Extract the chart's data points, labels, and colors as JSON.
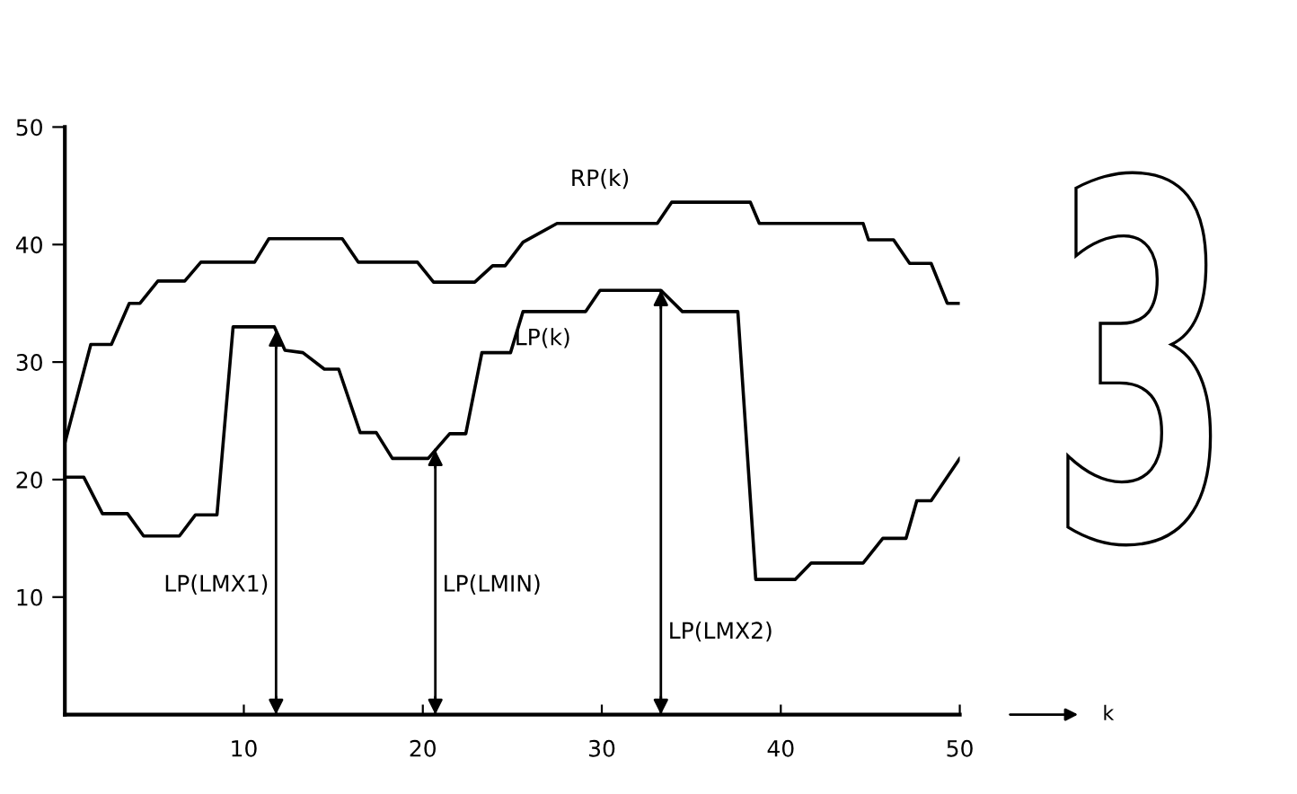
{
  "chart_data": {
    "type": "line",
    "xlim": [
      0,
      50
    ],
    "ylim": [
      0,
      50
    ],
    "xticks": [
      10,
      20,
      30,
      40,
      50
    ],
    "yticks": [
      10,
      20,
      30,
      40,
      50
    ],
    "grid": false,
    "legend": false,
    "marker": "none",
    "line_style": "solid",
    "series": [
      {
        "name": "RP(k)",
        "color": "#000000",
        "x": [
          0,
          1.45,
          2.6,
          3.6,
          4.2,
          5.2,
          6.7,
          7.6,
          10.6,
          11.4,
          15.5,
          16.4,
          19.7,
          20.6,
          22.9,
          23.9,
          24.6,
          25.6,
          27.5,
          33.1,
          33.9,
          38.3,
          38.8,
          44.6,
          44.9,
          46.3,
          47.2,
          48.4,
          49.3,
          50
        ],
        "values": [
          23.1,
          31.5,
          31.5,
          35,
          35,
          36.9,
          36.9,
          38.5,
          38.5,
          40.5,
          40.5,
          38.5,
          38.5,
          36.8,
          36.8,
          38.2,
          38.2,
          40.2,
          41.8,
          41.8,
          43.6,
          43.6,
          41.8,
          41.8,
          40.4,
          40.4,
          38.4,
          38.4,
          35,
          35
        ]
      },
      {
        "name": "LP(k)",
        "color": "#000000",
        "x": [
          0,
          1.06,
          2.1,
          3.5,
          4.4,
          6.4,
          7.3,
          8.5,
          9.4,
          11.7,
          12.3,
          13.3,
          14.5,
          15.3,
          16.5,
          17.4,
          18.3,
          20.3,
          21.5,
          22.4,
          23.3,
          24.9,
          25.6,
          29.1,
          29.9,
          33.3,
          34.5,
          37.6,
          38.6,
          40.8,
          41.7,
          44.6,
          45.7,
          47,
          47.6,
          48.4,
          50
        ],
        "values": [
          20.2,
          20.2,
          17.1,
          17.1,
          15.2,
          15.2,
          17,
          17,
          33,
          33,
          31,
          30.8,
          29.4,
          29.4,
          24,
          24,
          21.8,
          21.8,
          23.9,
          23.9,
          30.8,
          30.8,
          34.3,
          34.3,
          36.1,
          36.1,
          34.3,
          34.3,
          11.5,
          11.5,
          12.9,
          12.9,
          15,
          15,
          18.2,
          18.2,
          21.8
        ]
      }
    ],
    "ref_lines": [
      {
        "axis": "x",
        "value": 11.8,
        "label": "LP(LMX1)"
      },
      {
        "axis": "x",
        "value": 20.7,
        "label": "LP(LMIN)"
      },
      {
        "axis": "x",
        "value": 33.3,
        "label": "LP(LMX2)"
      }
    ],
    "annotations": [
      "k"
    ]
  }
}
